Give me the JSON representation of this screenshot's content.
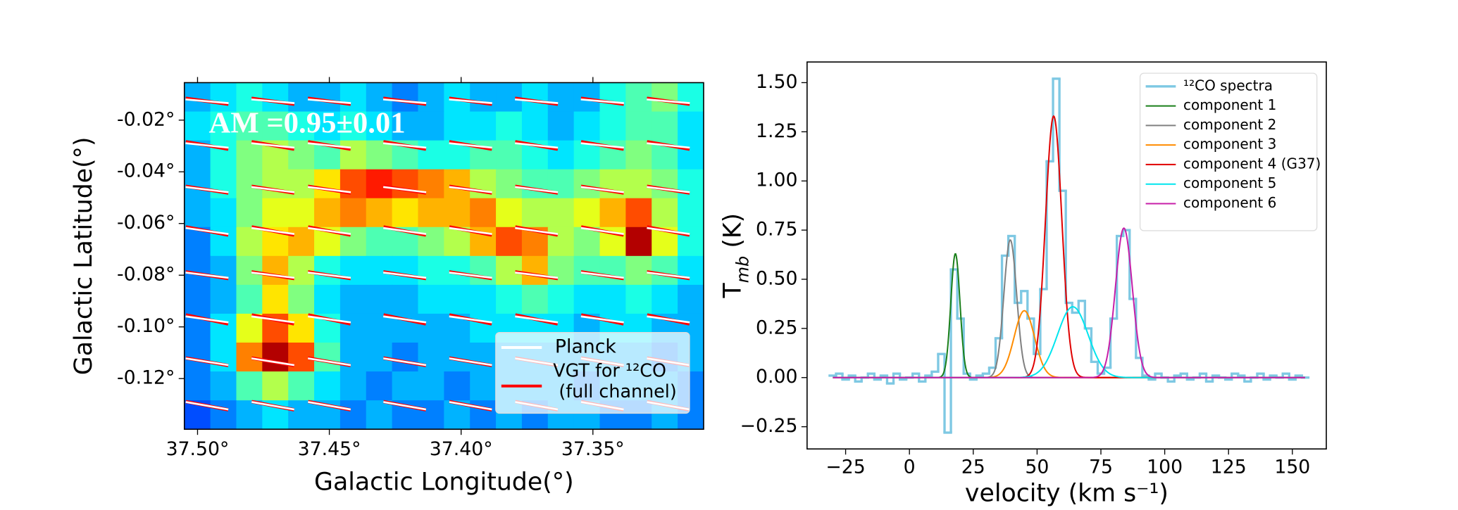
{
  "chart_data": [
    {
      "type": "heatmap",
      "x_label": "Galactic Longitude(°)",
      "y_label": "Galactic Latitude(°)",
      "annotation": "AM =0.95±0.01",
      "colormap": "jet",
      "xlim": [
        37.505,
        37.308
      ],
      "ylim": [
        -0.1396,
        -0.0055
      ],
      "xticks": [
        {
          "value": 37.5,
          "label": "37.50°"
        },
        {
          "value": 37.45,
          "label": "37.45°"
        },
        {
          "value": 37.4,
          "label": "37.40°"
        },
        {
          "value": 37.35,
          "label": "37.35°"
        }
      ],
      "yticks": [
        {
          "value": -0.02,
          "label": "-0.02°"
        },
        {
          "value": -0.04,
          "label": "-0.04°"
        },
        {
          "value": -0.06,
          "label": "-0.06°"
        },
        {
          "value": -0.08,
          "label": "-0.08°"
        },
        {
          "value": -0.1,
          "label": "-0.10°"
        },
        {
          "value": -0.12,
          "label": "-0.12°"
        }
      ],
      "z": [
        [
          0.3,
          0.35,
          0.4,
          0.35,
          0.3,
          0.3,
          0.35,
          0.3,
          0.25,
          0.3,
          0.35,
          0.3,
          0.3,
          0.35,
          0.3,
          0.3,
          0.4,
          0.45,
          0.5,
          0.4
        ],
        [
          0.35,
          0.4,
          0.45,
          0.45,
          0.4,
          0.35,
          0.4,
          0.35,
          0.3,
          0.3,
          0.35,
          0.35,
          0.4,
          0.35,
          0.3,
          0.35,
          0.4,
          0.45,
          0.45,
          0.35
        ],
        [
          0.3,
          0.4,
          0.5,
          0.55,
          0.5,
          0.45,
          0.55,
          0.5,
          0.45,
          0.4,
          0.4,
          0.45,
          0.45,
          0.4,
          0.35,
          0.4,
          0.45,
          0.5,
          0.45,
          0.35
        ],
        [
          0.3,
          0.4,
          0.5,
          0.55,
          0.55,
          0.65,
          0.8,
          0.85,
          0.8,
          0.75,
          0.7,
          0.55,
          0.5,
          0.45,
          0.45,
          0.5,
          0.55,
          0.55,
          0.5,
          0.4
        ],
        [
          0.3,
          0.35,
          0.5,
          0.6,
          0.6,
          0.7,
          0.75,
          0.7,
          0.65,
          0.7,
          0.7,
          0.75,
          0.6,
          0.55,
          0.55,
          0.6,
          0.7,
          0.8,
          0.55,
          0.4
        ],
        [
          0.25,
          0.35,
          0.55,
          0.65,
          0.7,
          0.6,
          0.5,
          0.45,
          0.45,
          0.5,
          0.55,
          0.7,
          0.8,
          0.75,
          0.55,
          0.5,
          0.6,
          0.95,
          0.6,
          0.4
        ],
        [
          0.25,
          0.3,
          0.5,
          0.7,
          0.55,
          0.4,
          0.35,
          0.35,
          0.35,
          0.4,
          0.4,
          0.45,
          0.55,
          0.7,
          0.5,
          0.45,
          0.45,
          0.5,
          0.45,
          0.35
        ],
        [
          0.25,
          0.3,
          0.45,
          0.65,
          0.5,
          0.35,
          0.3,
          0.3,
          0.3,
          0.35,
          0.35,
          0.35,
          0.4,
          0.45,
          0.4,
          0.35,
          0.35,
          0.4,
          0.35,
          0.3
        ],
        [
          0.25,
          0.35,
          0.6,
          0.8,
          0.65,
          0.4,
          0.3,
          0.3,
          0.3,
          0.3,
          0.3,
          0.35,
          0.35,
          0.35,
          0.35,
          0.3,
          0.35,
          0.35,
          0.3,
          0.3
        ],
        [
          0.25,
          0.35,
          0.75,
          0.95,
          0.8,
          0.45,
          0.3,
          0.3,
          0.25,
          0.3,
          0.3,
          0.3,
          0.3,
          0.3,
          0.3,
          0.3,
          0.3,
          0.3,
          0.25,
          0.3
        ],
        [
          0.25,
          0.3,
          0.45,
          0.55,
          0.45,
          0.35,
          0.3,
          0.25,
          0.3,
          0.3,
          0.25,
          0.3,
          0.3,
          0.3,
          0.3,
          0.25,
          0.3,
          0.3,
          0.3,
          0.25
        ],
        [
          0.2,
          0.25,
          0.3,
          0.35,
          0.3,
          0.3,
          0.25,
          0.3,
          0.25,
          0.25,
          0.3,
          0.25,
          0.3,
          0.25,
          0.3,
          0.3,
          0.25,
          0.25,
          0.3,
          0.25
        ]
      ],
      "vectors": {
        "lon": [
          37.4964,
          37.4714,
          37.45,
          37.4214,
          37.3964,
          37.3714,
          37.3464,
          37.3214
        ],
        "lat": [
          -0.0127,
          -0.0298,
          -0.0469,
          -0.0629,
          -0.08,
          -0.0971,
          -0.1135,
          -0.1305
        ],
        "series": [
          {
            "name": "VGT for ¹²CO\n (full channel)",
            "color": "#ff0000",
            "angles": [
              -8,
              -10,
              -9,
              -11,
              -9,
              -12,
              -10,
              -11
            ]
          },
          {
            "name": "Planck",
            "color": "#ffffff",
            "angles": [
              -5,
              -6,
              -7,
              -8,
              -7,
              -8,
              -9,
              -10
            ]
          }
        ]
      }
    },
    {
      "type": "line",
      "x_label": "velocity (km s⁻¹)",
      "y_label": "T",
      "y_label_sub": "mb",
      "y_label_unit": " (K)",
      "xlim": [
        -40.1,
        163.3
      ],
      "ylim": [
        -0.363,
        1.605
      ],
      "xticks": [
        {
          "value": -25,
          "label": "−25"
        },
        0,
        25,
        50,
        75,
        100,
        125,
        150
      ],
      "yticks": [
        {
          "value": -0.25,
          "label": "−0.25"
        },
        {
          "value": 0,
          "label": "0.00"
        },
        {
          "value": 0.25,
          "label": "0.25"
        },
        {
          "value": 0.5,
          "label": "0.50"
        },
        {
          "value": 0.75,
          "label": "0.75"
        },
        {
          "value": 1.0,
          "label": "1.00"
        },
        {
          "value": 1.25,
          "label": "1.25"
        },
        {
          "value": 1.5,
          "label": "1.50"
        }
      ],
      "x": [
        -30,
        -27.5,
        -25,
        -22.5,
        -20,
        -17.5,
        -15,
        -12.5,
        -10,
        -7.5,
        -5,
        -2.5,
        0,
        2.5,
        5,
        7.5,
        10,
        12.5,
        15,
        17.5,
        20,
        22.5,
        25,
        27.5,
        30,
        32.5,
        35,
        37.5,
        40,
        42.5,
        45,
        47.5,
        50,
        52.5,
        55,
        57.5,
        60,
        62.5,
        65,
        67.5,
        70,
        72.5,
        75,
        77.5,
        80,
        82.5,
        85,
        87.5,
        90,
        92.5,
        95,
        97.5,
        100,
        102.5,
        105,
        107.5,
        110,
        112.5,
        115,
        117.5,
        120,
        122.5,
        125,
        127.5,
        130,
        132.5,
        135,
        137.5,
        140,
        142.5,
        145,
        147.5,
        150,
        152.5,
        155
      ],
      "series": [
        {
          "name": "¹²CO spectra",
          "color": "#7ec8e3",
          "drawstyle": "steps-mid",
          "values": [
            0.01,
            0.02,
            -0.01,
            0.01,
            -0.02,
            0.0,
            0.02,
            -0.01,
            0.01,
            -0.03,
            0.02,
            -0.01,
            0.0,
            0.02,
            -0.02,
            0.01,
            0.03,
            0.12,
            -0.28,
            0.55,
            0.3,
            0.02,
            -0.01,
            0.01,
            0.02,
            0.05,
            0.2,
            0.62,
            0.72,
            0.38,
            0.44,
            0.3,
            0.12,
            0.45,
            1.1,
            1.52,
            0.95,
            0.38,
            0.33,
            0.39,
            0.25,
            0.08,
            0.02,
            0.05,
            0.3,
            0.72,
            0.75,
            0.4,
            0.1,
            0.01,
            -0.01,
            0.02,
            0.0,
            -0.02,
            0.01,
            0.02,
            -0.01,
            0.0,
            0.02,
            -0.02,
            0.01,
            0.0,
            -0.01,
            0.02,
            0.01,
            -0.02,
            0.0,
            0.02,
            -0.01,
            0.01,
            0.0,
            0.02,
            -0.01,
            0.01,
            0.0
          ]
        }
      ],
      "components": [
        {
          "name": "component 1",
          "color": "#1a7f1a",
          "amplitude": 0.63,
          "center": 18,
          "sigma": 1.8
        },
        {
          "name": "component 2",
          "color": "#808080",
          "amplitude": 0.7,
          "center": 39.5,
          "sigma": 2.5
        },
        {
          "name": "component 3",
          "color": "#ff8c00",
          "amplitude": 0.34,
          "center": 45,
          "sigma": 4
        },
        {
          "name": "component 4 (G37)",
          "color": "#e00000",
          "amplitude": 1.33,
          "center": 56.5,
          "sigma": 3.2
        },
        {
          "name": "component 5",
          "color": "#00e5ee",
          "amplitude": 0.36,
          "center": 64,
          "sigma": 6
        },
        {
          "name": "component 6",
          "color": "#c71fa8",
          "amplitude": 0.76,
          "center": 84,
          "sigma": 3.3
        }
      ]
    }
  ]
}
